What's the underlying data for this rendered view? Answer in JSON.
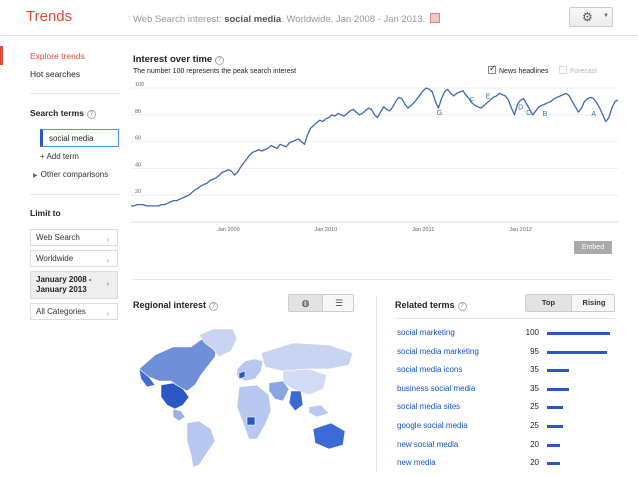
{
  "header": {
    "logo": "Trends",
    "crumb_prefix": "Web Search interest: ",
    "crumb_term": "social media",
    "crumb_suffix": ". Worldwide, Jan 2008 - Jan 2013.",
    "gear_icon": "gear-icon"
  },
  "sidebar": {
    "explore": "Explore trends",
    "hot": "Hot searches",
    "search_terms_heading": "Search terms",
    "term_value": "social media",
    "add_term": "+ Add term",
    "other": "Other comparisons",
    "limit_heading": "Limit to",
    "limits": {
      "web": "Web Search",
      "world": "Worldwide",
      "date_line1": "January 2008 -",
      "date_line2": "January 2013",
      "cats": "All Categories"
    }
  },
  "interest": {
    "title": "Interest over time",
    "subtitle": "The number 100 represents the peak search interest",
    "news_label": "News headlines",
    "forecast_label": "Forecast",
    "embed": "Embed"
  },
  "chart_data": {
    "type": "line",
    "x_start": "2008-01",
    "x_step": "1 month",
    "yticks": [
      20,
      40,
      60,
      80,
      100
    ],
    "xtick_labels": [
      "Jan 2009",
      "Jan 2010",
      "Jan 2011",
      "Jan 2012"
    ],
    "ylim": [
      0,
      100
    ],
    "grid": true,
    "series": [
      {
        "color": "#3d6bb3",
        "values": [
          12,
          12,
          13,
          13,
          13,
          12,
          12,
          12,
          12,
          12,
          13,
          13,
          14,
          15,
          16,
          16,
          17,
          18,
          19,
          20,
          22,
          24,
          25,
          27,
          28,
          29,
          31,
          32,
          33,
          35,
          37,
          38,
          39,
          38,
          35,
          37,
          41,
          44,
          47,
          50,
          52,
          53,
          54,
          53,
          54,
          55,
          57,
          56,
          55,
          58,
          57,
          56,
          59,
          60,
          61,
          62,
          60,
          58,
          65,
          70,
          72,
          74,
          76,
          75,
          77,
          78,
          80,
          79,
          81,
          80,
          79,
          81,
          83,
          84,
          82,
          80,
          81,
          83,
          85,
          84,
          80,
          78,
          82,
          86,
          84,
          83,
          86,
          90,
          93,
          92,
          88,
          85,
          87,
          89,
          92,
          95,
          98,
          100,
          99,
          97,
          90,
          85,
          92,
          97,
          99,
          96,
          94,
          96,
          97,
          98,
          95,
          92,
          89,
          87,
          86,
          85,
          87,
          89,
          91,
          93,
          94,
          96,
          95,
          94,
          91,
          85,
          80,
          88,
          91,
          92,
          88,
          84,
          80,
          83,
          86,
          87,
          88,
          89,
          90,
          92,
          93,
          94,
          95,
          96,
          94,
          90,
          86,
          82,
          85,
          90,
          92,
          93,
          92,
          89,
          85,
          80,
          75,
          78,
          85,
          90,
          91
        ]
      }
    ],
    "annotations": [
      {
        "label": "G",
        "x": 38,
        "y": 80
      },
      {
        "label": "F",
        "x": 42,
        "y": 89
      },
      {
        "label": "E",
        "x": 44,
        "y": 92
      },
      {
        "label": "D",
        "x": 48,
        "y": 84
      },
      {
        "label": "C",
        "x": 49,
        "y": 80
      },
      {
        "label": "B",
        "x": 51,
        "y": 79
      },
      {
        "label": "A",
        "x": 57,
        "y": 79
      }
    ]
  },
  "regional": {
    "title": "Regional interest",
    "globe_icon": "globe-icon",
    "list_icon": "list-icon"
  },
  "related": {
    "title": "Related terms",
    "top": "Top",
    "rising": "Rising",
    "items": [
      {
        "term": "social marketing",
        "value": "100"
      },
      {
        "term": "social media marketing",
        "value": "95"
      },
      {
        "term": "social media icons",
        "value": "35"
      },
      {
        "term": "business social media",
        "value": "35"
      },
      {
        "term": "social media sites",
        "value": "25"
      },
      {
        "term": "google social media",
        "value": "25"
      },
      {
        "term": "new social media",
        "value": "20"
      },
      {
        "term": "new media",
        "value": "20"
      }
    ]
  }
}
